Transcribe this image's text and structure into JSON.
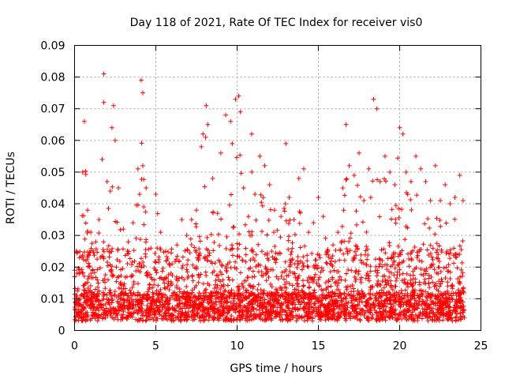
{
  "chart_data": {
    "type": "scatter",
    "title": "Day 118 of 2021, Rate Of TEC Index for receiver vis0",
    "xlabel": "GPS time / hours",
    "ylabel": "ROTI / TECUs",
    "xlim": [
      0,
      25
    ],
    "ylim": [
      0,
      0.09
    ],
    "x_ticks": [
      0,
      5,
      10,
      15,
      20,
      25
    ],
    "x_tick_labels": [
      "0",
      "5",
      "10",
      "15",
      "20",
      "25"
    ],
    "y_ticks": [
      0,
      0.01,
      0.02,
      0.03,
      0.04,
      0.05,
      0.06,
      0.07,
      0.08,
      0.09
    ],
    "y_tick_labels": [
      "0",
      "0.01",
      "0.02",
      "0.03",
      "0.04",
      "0.05",
      "0.06",
      "0.07",
      "0.08",
      "0.09"
    ],
    "grid": true,
    "marker": "plus",
    "marker_color": "#ff0000",
    "series": [
      {
        "name": "ROTI",
        "note": "dense cloud of points across 0-24 h, mostly 0.003-0.03 TECU/s; representative peak values listed",
        "x": [
          0.0,
          0.1,
          0.3,
          0.5,
          0.6,
          0.8,
          1.0,
          1.3,
          1.5,
          1.7,
          1.8,
          1.8,
          2.0,
          2.2,
          2.3,
          2.4,
          2.5,
          2.7,
          3.0,
          3.3,
          3.6,
          3.9,
          4.0,
          4.1,
          4.2,
          4.2,
          4.4,
          4.7,
          5.0,
          5.3,
          5.6,
          6.0,
          6.3,
          6.6,
          6.9,
          7.2,
          7.5,
          7.8,
          7.9,
          8.1,
          8.2,
          8.5,
          8.8,
          9.0,
          9.3,
          9.6,
          9.7,
          9.9,
          10.1,
          10.2,
          10.4,
          10.7,
          10.9,
          11.1,
          11.4,
          11.7,
          12.0,
          12.3,
          12.7,
          13.0,
          13.2,
          13.5,
          13.8,
          14.1,
          14.4,
          14.7,
          15.0,
          15.3,
          15.6,
          15.9,
          16.2,
          16.5,
          16.7,
          16.9,
          17.2,
          17.5,
          17.8,
          18.1,
          18.4,
          18.6,
          18.8,
          19.1,
          19.4,
          19.7,
          20.0,
          20.2,
          20.4,
          20.7,
          21.0,
          21.3,
          21.6,
          21.9,
          22.2,
          22.5,
          22.8,
          23.1,
          23.4,
          23.7,
          23.9
        ],
        "y": [
          0.019,
          0.025,
          0.023,
          0.05,
          0.066,
          0.038,
          0.031,
          0.028,
          0.035,
          0.054,
          0.081,
          0.072,
          0.047,
          0.044,
          0.064,
          0.071,
          0.06,
          0.045,
          0.032,
          0.028,
          0.034,
          0.051,
          0.043,
          0.079,
          0.075,
          0.052,
          0.045,
          0.026,
          0.043,
          0.031,
          0.025,
          0.021,
          0.027,
          0.035,
          0.03,
          0.035,
          0.038,
          0.058,
          0.062,
          0.071,
          0.065,
          0.048,
          0.037,
          0.056,
          0.068,
          0.066,
          0.059,
          0.073,
          0.074,
          0.069,
          0.045,
          0.036,
          0.062,
          0.043,
          0.055,
          0.052,
          0.046,
          0.038,
          0.036,
          0.059,
          0.042,
          0.035,
          0.048,
          0.051,
          0.031,
          0.034,
          0.042,
          0.036,
          0.024,
          0.027,
          0.031,
          0.045,
          0.065,
          0.052,
          0.049,
          0.056,
          0.041,
          0.051,
          0.073,
          0.07,
          0.047,
          0.055,
          0.05,
          0.046,
          0.064,
          0.062,
          0.05,
          0.047,
          0.055,
          0.051,
          0.047,
          0.041,
          0.052,
          0.041,
          0.046,
          0.04,
          0.042,
          0.049,
          0.041
        ]
      }
    ]
  }
}
